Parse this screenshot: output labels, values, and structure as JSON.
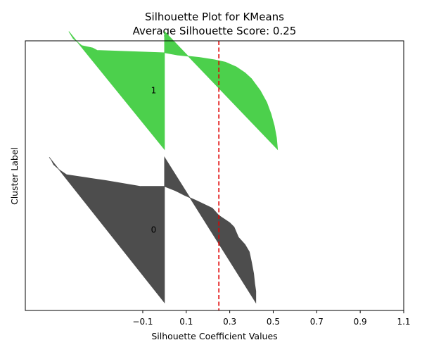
{
  "chart_data": {
    "type": "area",
    "title": "Silhouette Plot for KMeans",
    "subtitle": "Average Silhouette Score: 0.25",
    "xlabel": "Silhouette Coefficient Values",
    "ylabel": "Cluster Label",
    "xlim": [
      -0.64,
      1.1
    ],
    "xticks": [
      -0.1,
      0.1,
      0.3,
      0.5,
      0.7,
      0.9,
      1.1
    ],
    "xtick_labels": [
      "−0.1",
      "0.1",
      "0.3",
      "0.5",
      "0.7",
      "0.9",
      "1.1"
    ],
    "ylim": [
      0,
      345
    ],
    "average_score": 0.25,
    "grid": false,
    "series": [
      {
        "name": "0",
        "color": "#4d4d4d",
        "y_lower": 10,
        "y_upper": 196,
        "profile": [
          [
            0.0,
            0.42
          ],
          [
            0.08,
            0.42
          ],
          [
            0.13,
            0.415
          ],
          [
            0.2,
            0.41
          ],
          [
            0.28,
            0.4
          ],
          [
            0.35,
            0.39
          ],
          [
            0.4,
            0.37
          ],
          [
            0.45,
            0.34
          ],
          [
            0.52,
            0.32
          ],
          [
            0.55,
            0.3
          ],
          [
            0.6,
            0.25
          ],
          [
            0.65,
            0.22
          ],
          [
            0.7,
            0.15
          ],
          [
            0.74,
            0.09
          ],
          [
            0.77,
            0.05
          ],
          [
            0.8,
            0.0
          ],
          [
            0.8,
            -0.11
          ],
          [
            0.84,
            -0.27
          ],
          [
            0.86,
            -0.36
          ],
          [
            0.88,
            -0.45
          ],
          [
            0.91,
            -0.48
          ],
          [
            0.95,
            -0.51
          ],
          [
            0.98,
            -0.52
          ],
          [
            1.0,
            -0.53
          ]
        ]
      },
      {
        "name": "1",
        "color": "#4cd04c",
        "y_lower": 206,
        "y_upper": 357,
        "profile": [
          [
            0.0,
            0.52
          ],
          [
            0.1,
            0.515
          ],
          [
            0.2,
            0.505
          ],
          [
            0.3,
            0.49
          ],
          [
            0.4,
            0.47
          ],
          [
            0.5,
            0.44
          ],
          [
            0.6,
            0.4
          ],
          [
            0.65,
            0.37
          ],
          [
            0.7,
            0.33
          ],
          [
            0.74,
            0.28
          ],
          [
            0.76,
            0.23
          ],
          [
            0.78,
            0.16
          ],
          [
            0.8,
            0.06
          ],
          [
            0.82,
            0.0
          ],
          [
            0.84,
            -0.31
          ],
          [
            0.86,
            -0.33
          ],
          [
            0.88,
            -0.38
          ],
          [
            0.91,
            -0.4
          ],
          [
            0.94,
            -0.42
          ],
          [
            0.97,
            -0.43
          ],
          [
            1.0,
            -0.44
          ]
        ]
      }
    ]
  }
}
